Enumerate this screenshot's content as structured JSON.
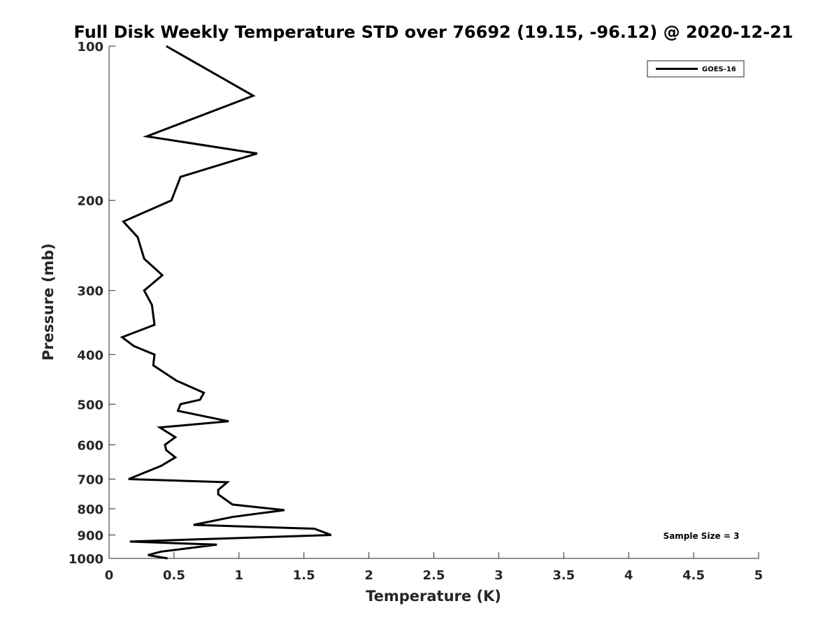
{
  "chart_data": {
    "type": "line",
    "title": "Full Disk Weekly Temperature STD over 76692 (19.15, -96.12) @ 2020-12-21",
    "xlabel": "Temperature (K)",
    "ylabel": "Pressure (mb)",
    "xlim": [
      0,
      5
    ],
    "ylim": [
      100,
      1000
    ],
    "y_scale": "log",
    "y_reversed": true,
    "x_ticks": [
      "0",
      "0.5",
      "1",
      "1.5",
      "2",
      "2.5",
      "3",
      "3.5",
      "4",
      "4.5",
      "5"
    ],
    "x_tick_values": [
      0,
      0.5,
      1,
      1.5,
      2,
      2.5,
      3,
      3.5,
      4,
      4.5,
      5
    ],
    "y_ticks": [
      "100",
      "200",
      "300",
      "400",
      "500",
      "600",
      "700",
      "800",
      "900",
      "1000"
    ],
    "y_tick_values": [
      100,
      200,
      300,
      400,
      500,
      600,
      700,
      800,
      900,
      1000
    ],
    "grid": false,
    "legend_position": "top-right",
    "series": [
      {
        "name": "GOES-16",
        "color": "#000000",
        "points": [
          [
            0.44,
            100
          ],
          [
            1.11,
            125
          ],
          [
            0.29,
            150
          ],
          [
            1.14,
            162
          ],
          [
            0.55,
            180
          ],
          [
            0.48,
            200
          ],
          [
            0.11,
            220
          ],
          [
            0.22,
            236
          ],
          [
            0.27,
            260
          ],
          [
            0.41,
            280
          ],
          [
            0.27,
            300
          ],
          [
            0.33,
            320
          ],
          [
            0.35,
            350
          ],
          [
            0.1,
            370
          ],
          [
            0.19,
            385
          ],
          [
            0.35,
            400
          ],
          [
            0.34,
            420
          ],
          [
            0.52,
            450
          ],
          [
            0.73,
            475
          ],
          [
            0.7,
            490
          ],
          [
            0.55,
            500
          ],
          [
            0.53,
            515
          ],
          [
            0.92,
            540
          ],
          [
            0.39,
            555
          ],
          [
            0.51,
            580
          ],
          [
            0.43,
            600
          ],
          [
            0.44,
            615
          ],
          [
            0.51,
            635
          ],
          [
            0.4,
            660
          ],
          [
            0.15,
            700
          ],
          [
            0.91,
            710
          ],
          [
            0.84,
            735
          ],
          [
            0.84,
            750
          ],
          [
            0.95,
            785
          ],
          [
            1.35,
            805
          ],
          [
            0.95,
            830
          ],
          [
            0.65,
            860
          ],
          [
            1.58,
            875
          ],
          [
            1.71,
            900
          ],
          [
            0.16,
            927
          ],
          [
            0.83,
            940
          ],
          [
            0.4,
            970
          ],
          [
            0.3,
            985
          ],
          [
            0.45,
            1000
          ]
        ]
      }
    ],
    "annotations": [
      "Sample Size = 3"
    ]
  }
}
